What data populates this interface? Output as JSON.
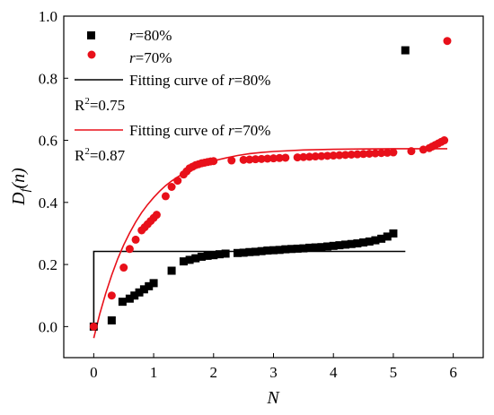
{
  "chart_data": {
    "type": "scatter",
    "xlabel": "N",
    "ylabel": "D_f(n)",
    "ylabel_parts": {
      "main": "D",
      "sub": "f",
      "rest": "(n)"
    },
    "xlim": [
      -0.5,
      6.5
    ],
    "ylim": [
      -0.1,
      1.0
    ],
    "x_ticks": [
      0,
      1,
      2,
      3,
      4,
      5,
      6
    ],
    "x_tick_labels": [
      "0",
      "1",
      "2",
      "3",
      "4",
      "5",
      "6"
    ],
    "y_ticks": [
      0.0,
      0.2,
      0.4,
      0.6,
      0.8,
      1.0
    ],
    "y_tick_labels": [
      "0.0",
      "0.2",
      "0.4",
      "0.6",
      "0.8",
      "1.0"
    ],
    "grid": false,
    "legend_position": "top-left",
    "series": [
      {
        "name": "r=80%",
        "name_parts": {
          "var": "r",
          "rest": "=80%"
        },
        "marker": "square",
        "color": "#000000",
        "x": [
          0.0,
          0.3,
          0.48,
          0.6,
          0.68,
          0.76,
          0.84,
          0.92,
          1.0,
          1.3,
          1.5,
          1.6,
          1.7,
          1.8,
          1.9,
          2.0,
          2.1,
          2.2,
          2.4,
          2.5,
          2.6,
          2.7,
          2.8,
          2.9,
          3.0,
          3.1,
          3.2,
          3.3,
          3.4,
          3.5,
          3.6,
          3.7,
          3.8,
          3.9,
          4.0,
          4.1,
          4.2,
          4.3,
          4.4,
          4.5,
          4.6,
          4.7,
          4.8,
          4.9,
          5.0,
          5.2
        ],
        "y": [
          0.0,
          0.02,
          0.08,
          0.09,
          0.1,
          0.11,
          0.12,
          0.13,
          0.14,
          0.18,
          0.21,
          0.215,
          0.22,
          0.225,
          0.228,
          0.23,
          0.233,
          0.235,
          0.237,
          0.238,
          0.24,
          0.241,
          0.243,
          0.245,
          0.246,
          0.247,
          0.249,
          0.25,
          0.251,
          0.252,
          0.254,
          0.255,
          0.256,
          0.258,
          0.26,
          0.262,
          0.264,
          0.266,
          0.268,
          0.271,
          0.274,
          0.278,
          0.283,
          0.29,
          0.3,
          0.89
        ]
      },
      {
        "name": "r=70%",
        "name_parts": {
          "var": "r",
          "rest": "=70%"
        },
        "marker": "circle",
        "color": "#e8101a",
        "x": [
          0.0,
          0.3,
          0.5,
          0.6,
          0.7,
          0.8,
          0.85,
          0.9,
          0.95,
          1.0,
          1.05,
          1.2,
          1.3,
          1.4,
          1.5,
          1.55,
          1.6,
          1.65,
          1.7,
          1.75,
          1.8,
          1.85,
          1.9,
          1.95,
          2.0,
          2.3,
          2.5,
          2.6,
          2.7,
          2.8,
          2.9,
          3.0,
          3.1,
          3.2,
          3.4,
          3.5,
          3.6,
          3.7,
          3.8,
          3.9,
          4.0,
          4.1,
          4.2,
          4.3,
          4.4,
          4.5,
          4.6,
          4.7,
          4.8,
          4.9,
          5.0,
          5.3,
          5.5,
          5.6,
          5.65,
          5.7,
          5.75,
          5.8,
          5.85,
          5.9
        ],
        "y": [
          0.0,
          0.1,
          0.19,
          0.25,
          0.28,
          0.31,
          0.32,
          0.33,
          0.34,
          0.35,
          0.36,
          0.42,
          0.45,
          0.47,
          0.49,
          0.5,
          0.51,
          0.515,
          0.52,
          0.523,
          0.526,
          0.528,
          0.53,
          0.532,
          0.533,
          0.535,
          0.537,
          0.538,
          0.539,
          0.54,
          0.541,
          0.542,
          0.543,
          0.544,
          0.545,
          0.546,
          0.547,
          0.548,
          0.549,
          0.55,
          0.551,
          0.552,
          0.553,
          0.554,
          0.555,
          0.556,
          0.557,
          0.558,
          0.559,
          0.56,
          0.561,
          0.565,
          0.57,
          0.575,
          0.58,
          0.585,
          0.59,
          0.595,
          0.6,
          0.92
        ]
      }
    ],
    "fits": [
      {
        "name": "Fitting curve of r=80%",
        "name_parts": {
          "pre": "Fitting curve of ",
          "var": "r",
          "rest": "=80%"
        },
        "color": "#000000",
        "r2_label": "R",
        "r2_sup": "2",
        "r2_value": "=0.75",
        "x": [
          0.0,
          0.0,
          5.2
        ],
        "y": [
          0.0,
          0.242,
          0.242
        ]
      },
      {
        "name": "Fitting curve of r=70%",
        "name_parts": {
          "pre": "Fitting curve of ",
          "var": "r",
          "rest": "=70%"
        },
        "color": "#e8101a",
        "r2_label": "R",
        "r2_sup": "2",
        "r2_value": "=0.87",
        "x": [
          0.0,
          0.1,
          0.2,
          0.3,
          0.4,
          0.5,
          0.6,
          0.7,
          0.8,
          0.9,
          1.0,
          1.1,
          1.2,
          1.3,
          1.4,
          1.5,
          1.6,
          1.7,
          1.8,
          1.9,
          2.0,
          2.2,
          2.4,
          2.6,
          2.8,
          3.0,
          3.5,
          4.0,
          4.5,
          5.0,
          5.5,
          5.9
        ],
        "y": [
          -0.037,
          0.04,
          0.107,
          0.166,
          0.218,
          0.263,
          0.302,
          0.337,
          0.367,
          0.393,
          0.416,
          0.436,
          0.454,
          0.469,
          0.482,
          0.494,
          0.504,
          0.513,
          0.521,
          0.528,
          0.534,
          0.543,
          0.551,
          0.557,
          0.561,
          0.564,
          0.569,
          0.571,
          0.572,
          0.573,
          0.573,
          0.573
        ]
      }
    ]
  }
}
